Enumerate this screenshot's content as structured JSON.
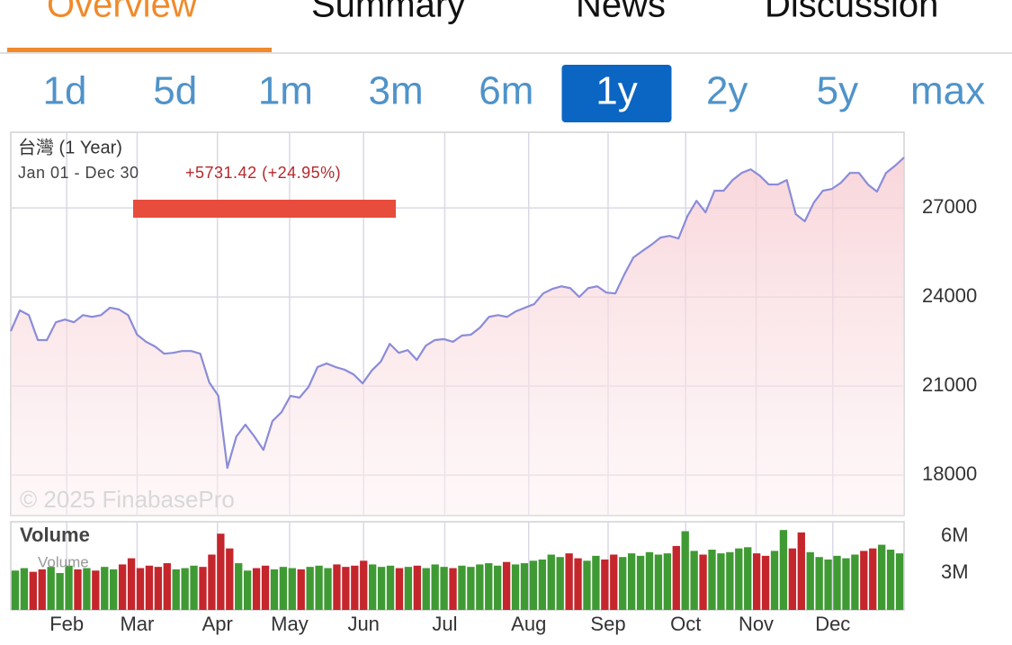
{
  "tabs": [
    "Overview",
    "Summary",
    "News",
    "Discussion"
  ],
  "active_tab": 0,
  "ranges": [
    "1d",
    "5d",
    "1m",
    "3m",
    "6m",
    "1y",
    "2y",
    "5y",
    "max"
  ],
  "active_range": 5,
  "chart_data": [
    {
      "type": "line",
      "title": "台灣 (1 Year)",
      "subtitle": "Jan 01 - Dec 30",
      "annotation": "+5731.42 (+24.95%)",
      "watermark": "© 2025 FinabasePro",
      "color": "#8b8cd8",
      "values": [
        22850,
        23550,
        23390,
        22550,
        22550,
        23150,
        23240,
        23150,
        23390,
        23330,
        23390,
        23640,
        23580,
        23390,
        22730,
        22490,
        22330,
        22090,
        22120,
        22180,
        22180,
        22090,
        21120,
        20670,
        18240,
        19300,
        19700,
        19300,
        18850,
        19820,
        20120,
        20670,
        20610,
        20970,
        21640,
        21760,
        21640,
        21550,
        21390,
        21090,
        21520,
        21820,
        22420,
        22120,
        22210,
        21880,
        22360,
        22550,
        22580,
        22490,
        22700,
        22730,
        22970,
        23330,
        23390,
        23330,
        23520,
        23640,
        23760,
        24120,
        24270,
        24360,
        24300,
        24000,
        24300,
        24360,
        24150,
        24120,
        24760,
        25330,
        25550,
        25760,
        26000,
        26060,
        25970,
        26730,
        27240,
        26850,
        27580,
        27580,
        27940,
        28180,
        28300,
        28090,
        27790,
        27790,
        27940,
        26790,
        26550,
        27180,
        27580,
        27640,
        27850,
        28180,
        28180,
        27790,
        27550,
        28180,
        28420,
        28700
      ],
      "xlim": [
        0,
        99
      ],
      "xticks": [
        {
          "value": 6.2,
          "label": "Feb"
        },
        {
          "value": 14,
          "label": "Mar"
        },
        {
          "value": 22.9,
          "label": "Apr"
        },
        {
          "value": 30.9,
          "label": "May"
        },
        {
          "value": 39.1,
          "label": "Jun"
        },
        {
          "value": 48.1,
          "label": "Jul"
        },
        {
          "value": 57.4,
          "label": "Aug"
        },
        {
          "value": 66.2,
          "label": "Sep"
        },
        {
          "value": 74.8,
          "label": "Oct"
        },
        {
          "value": 82.6,
          "label": "Nov"
        },
        {
          "value": 91.1,
          "label": "Dec"
        }
      ],
      "ylim": [
        16640,
        29550
      ],
      "yticks": [
        18000,
        21000,
        24000,
        27000
      ],
      "grid": true
    },
    {
      "type": "bar",
      "title": "Volume",
      "watermark": "Volume",
      "up_color": "#3f9a34",
      "down_color": "#c4262c",
      "values": [
        3.2,
        3.4,
        3.1,
        3.3,
        3.5,
        3.0,
        3.6,
        3.3,
        3.4,
        3.2,
        3.5,
        3.3,
        3.7,
        4.2,
        3.4,
        3.6,
        3.5,
        3.8,
        3.3,
        3.4,
        3.6,
        3.5,
        4.5,
        6.2,
        5.0,
        3.8,
        3.2,
        3.4,
        3.6,
        3.3,
        3.5,
        3.4,
        3.3,
        3.5,
        3.6,
        3.4,
        3.7,
        3.5,
        3.6,
        4.0,
        3.7,
        3.5,
        3.6,
        3.4,
        3.5,
        3.6,
        3.4,
        3.7,
        3.5,
        3.4,
        3.6,
        3.5,
        3.7,
        3.8,
        3.6,
        3.9,
        3.7,
        3.8,
        4.0,
        4.1,
        4.5,
        4.3,
        4.6,
        4.2,
        4.0,
        4.4,
        4.1,
        4.5,
        4.3,
        4.6,
        4.4,
        4.7,
        4.5,
        4.6,
        5.2,
        6.4,
        4.8,
        4.5,
        4.9,
        4.6,
        4.7,
        5.0,
        5.1,
        4.6,
        4.4,
        4.8,
        6.5,
        5.0,
        6.3,
        4.7,
        4.3,
        4.1,
        4.4,
        4.2,
        4.5,
        4.8,
        5.0,
        5.3,
        4.9,
        4.6
      ],
      "ylim": [
        0,
        7.17
      ],
      "yticks": [
        {
          "value": 3,
          "label": "3M"
        },
        {
          "value": 6,
          "label": "6M"
        }
      ]
    }
  ]
}
